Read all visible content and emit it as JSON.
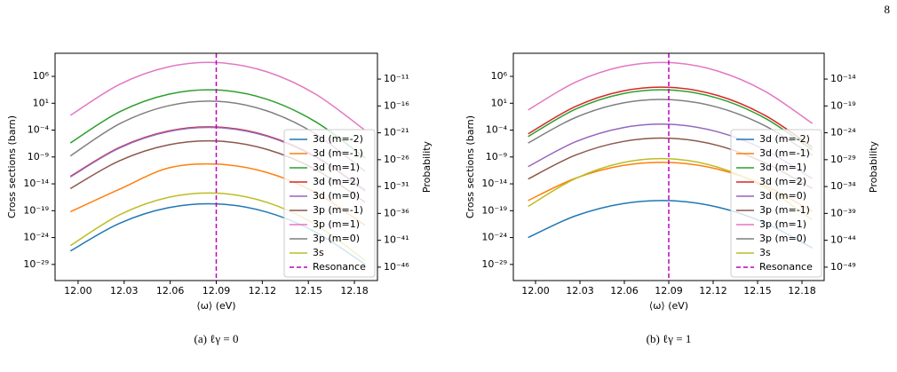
{
  "page_number": "8",
  "chart_data": [
    {
      "type": "line",
      "caption": "(a) ℓγ = 0",
      "xlabel": "⟨ω⟩ (eV)",
      "ylabel": "Cross sections (barn)",
      "y2label": "Probability",
      "log_y": true,
      "legend": "lower right",
      "xlim": [
        11.985,
        12.195
      ],
      "xticks": [
        {
          "value": 12,
          "label": "12.00"
        },
        12.03,
        12.06,
        12.09,
        12.12,
        12.15,
        12.18
      ],
      "ylim": [
        1e-32,
        20000000000.0
      ],
      "yticks": [
        {
          "value": 1000000.0,
          "label": "10⁶"
        },
        {
          "value": 10,
          "label": "10¹"
        },
        {
          "value": 0.0001,
          "label": "10⁻⁴"
        },
        {
          "value": 1e-09,
          "label": "10⁻⁹"
        },
        {
          "value": 1e-14,
          "label": "10⁻¹⁴"
        },
        {
          "value": 1e-19,
          "label": "10⁻¹⁹"
        },
        {
          "value": 1e-24,
          "label": "10⁻²⁴"
        },
        {
          "value": 1e-29,
          "label": "10⁻²⁹"
        }
      ],
      "y2lim": [
        3.2e-49,
        6.3e-07
      ],
      "y2ticks": [
        {
          "value": 1e-11,
          "label": "10⁻¹¹"
        },
        {
          "value": 1e-16,
          "label": "10⁻¹⁶"
        },
        {
          "value": 1e-21,
          "label": "10⁻²¹"
        },
        {
          "value": 1e-26,
          "label": "10⁻²⁶"
        },
        {
          "value": 1e-31,
          "label": "10⁻³¹"
        },
        {
          "value": 1e-36,
          "label": "10⁻³⁶"
        },
        {
          "value": 1e-41,
          "label": "10⁻⁴¹"
        },
        {
          "value": 1e-46,
          "label": "10⁻⁴⁶"
        }
      ],
      "x": [
        11.995,
        12.027,
        12.059,
        12.091,
        12.123,
        12.155,
        12.187
      ],
      "series": [
        {
          "name": "3d (m=-2)",
          "color": "#1f77b4",
          "values": [
            3.2e-27,
            4.5e-22,
            3.7e-19,
            1.8e-18,
            5.4e-20,
            9.5e-24,
            1e-29
          ]
        },
        {
          "name": "3d (m=-1)",
          "color": "#ff7f0e",
          "values": [
            6.3e-20,
            1e-15,
            9.1e-12,
            4.6e-11,
            1.3e-12,
            2.1e-16,
            1.9e-22
          ]
        },
        {
          "name": "3d (m=1)",
          "color": "#2ca02c",
          "values": [
            4e-07,
            0.25,
            480,
            2900,
            55,
            0.0032,
            6.2e-10
          ]
        },
        {
          "name": "3d (m=2)",
          "color": "#d62728",
          "values": [
            2.5e-13,
            6e-08,
            6.9e-05,
            0.00036,
            9.1e-06,
            1.1e-09,
            6.2e-16
          ]
        },
        {
          "name": "3d (m=0)",
          "color": "#9467bd",
          "values": [
            2e-13,
            4.8e-08,
            5.5e-05,
            0.00029,
            7.2e-06,
            8.5e-10,
            4.9e-16
          ]
        },
        {
          "name": "3p (m=-1)",
          "color": "#8c564b",
          "values": [
            1.3e-15,
            2e-10,
            1.8e-07,
            9.1e-07,
            2.6e-08,
            4.2e-12,
            3.7e-18
          ]
        },
        {
          "name": "3p (m=1)",
          "color": "#e377c2",
          "values": [
            0.056,
            32000.0,
            60000000.0,
            360000000.0,
            7100000.0,
            440,
            8.9e-05
          ]
        },
        {
          "name": "3p (m=0)",
          "color": "#7f7f7f",
          "values": [
            1.6e-09,
            0.0015,
            3.5,
            23,
            0.38,
            1.7e-05,
            2e-12
          ]
        },
        {
          "name": "3s",
          "color": "#bcbd22",
          "values": [
            3.2e-26,
            1.7e-20,
            3.1e-17,
            1.8e-16,
            3.6e-18,
            2.3e-22,
            5.2e-29
          ]
        }
      ],
      "vline": {
        "x": 12.09,
        "name": "Resonance",
        "color": "#bf00bf"
      }
    },
    {
      "type": "line",
      "caption": "(b) ℓγ = 1",
      "xlabel": "⟨ω⟩ (eV)",
      "ylabel": "Cross sections (barn)",
      "y2label": "Probability",
      "log_y": true,
      "legend": "lower right",
      "xlim": [
        11.985,
        12.195
      ],
      "xticks": [
        {
          "value": 12,
          "label": "12.00"
        },
        12.03,
        12.06,
        12.09,
        12.12,
        12.15,
        12.18
      ],
      "ylim": [
        1e-32,
        20000000000.0
      ],
      "yticks": [
        {
          "value": 1000000.0,
          "label": "10⁶"
        },
        {
          "value": 10,
          "label": "10¹"
        },
        {
          "value": 0.0001,
          "label": "10⁻⁴"
        },
        {
          "value": 1e-09,
          "label": "10⁻⁹"
        },
        {
          "value": 1e-14,
          "label": "10⁻¹⁴"
        },
        {
          "value": 1e-19,
          "label": "10⁻¹⁹"
        },
        {
          "value": 1e-24,
          "label": "10⁻²⁴"
        },
        {
          "value": 1e-29,
          "label": "10⁻²⁹"
        }
      ],
      "y2lim": [
        3.2e-52,
        6.3e-10
      ],
      "y2ticks": [
        {
          "value": 1e-14,
          "label": "10⁻¹⁴"
        },
        {
          "value": 1e-19,
          "label": "10⁻¹⁹"
        },
        {
          "value": 1e-24,
          "label": "10⁻²⁴"
        },
        {
          "value": 1e-29,
          "label": "10⁻²⁹"
        },
        {
          "value": 1e-34,
          "label": "10⁻³⁴"
        },
        {
          "value": 1e-39,
          "label": "10⁻³⁹"
        },
        {
          "value": 1e-44,
          "label": "10⁻⁴⁴"
        },
        {
          "value": 1e-49,
          "label": "10⁻⁴⁹"
        }
      ],
      "x": [
        11.995,
        12.027,
        12.059,
        12.091,
        12.123,
        12.155,
        12.187
      ],
      "series": [
        {
          "name": "3d (m=-2)",
          "color": "#1f77b4",
          "values": [
            1e-24,
            1.1e-20,
            2.1e-18,
            7.4e-18,
            4.7e-19,
            5.4e-22,
            1.1e-26
          ]
        },
        {
          "name": "3d (m=-1)",
          "color": "#ff7f0e",
          "values": [
            7.9e-18,
            1.1e-13,
            2.6e-11,
            9.3e-11,
            5.5e-12,
            5e-15,
            7.6e-20
          ]
        },
        {
          "name": "3d (m=1)",
          "color": "#2ca02c",
          "values": [
            6.3e-06,
            0.78,
            600,
            2900,
            89,
            0.017,
            2.1e-08
          ]
        },
        {
          "name": "3d (m=2)",
          "color": "#d62728",
          "values": [
            2e-05,
            2.5,
            1900,
            9100,
            280,
            0.055,
            6.8e-08
          ]
        },
        {
          "name": "3d (m=0)",
          "color": "#9467bd",
          "values": [
            1.6e-11,
            6.6e-07,
            0.00028,
            0.0012,
            4.9e-05,
            2.1e-08,
            9.1e-14
          ]
        },
        {
          "name": "3p (m=-1)",
          "color": "#8c564b",
          "values": [
            7.9e-14,
            2.2e-09,
            7.4e-07,
            3e-06,
            1.4e-07,
            7.9e-11,
            1.4e-15
          ]
        },
        {
          "name": "3p (m=1)",
          "color": "#e377c2",
          "values": [
            0.55,
            83000.0,
            72000000.0,
            360000000.0,
            10000000.0,
            1700,
            0.0017
          ]
        },
        {
          "name": "3p (m=0)",
          "color": "#7f7f7f",
          "values": [
            4e-07,
            0.022,
            11,
            46,
            1.8,
            0.00063,
            2e-09
          ]
        },
        {
          "name": "3s",
          "color": "#bcbd22",
          "values": [
            6.3e-19,
            1e-13,
            9.1e-11,
            4.6e-10,
            1.3e-11,
            2.1e-15,
            1.9e-21
          ]
        }
      ],
      "vline": {
        "x": 12.09,
        "name": "Resonance",
        "color": "#bf00bf"
      }
    }
  ]
}
